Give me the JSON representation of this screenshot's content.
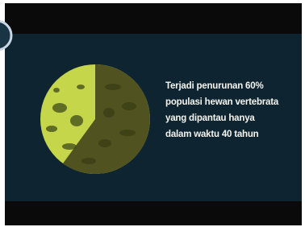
{
  "caption": {
    "lines": [
      "Terjadi penurunan 60%",
      "populasi hewan vertebrata",
      "yang dipantau hanya",
      "dalam waktu 40 tahun"
    ]
  }
}
